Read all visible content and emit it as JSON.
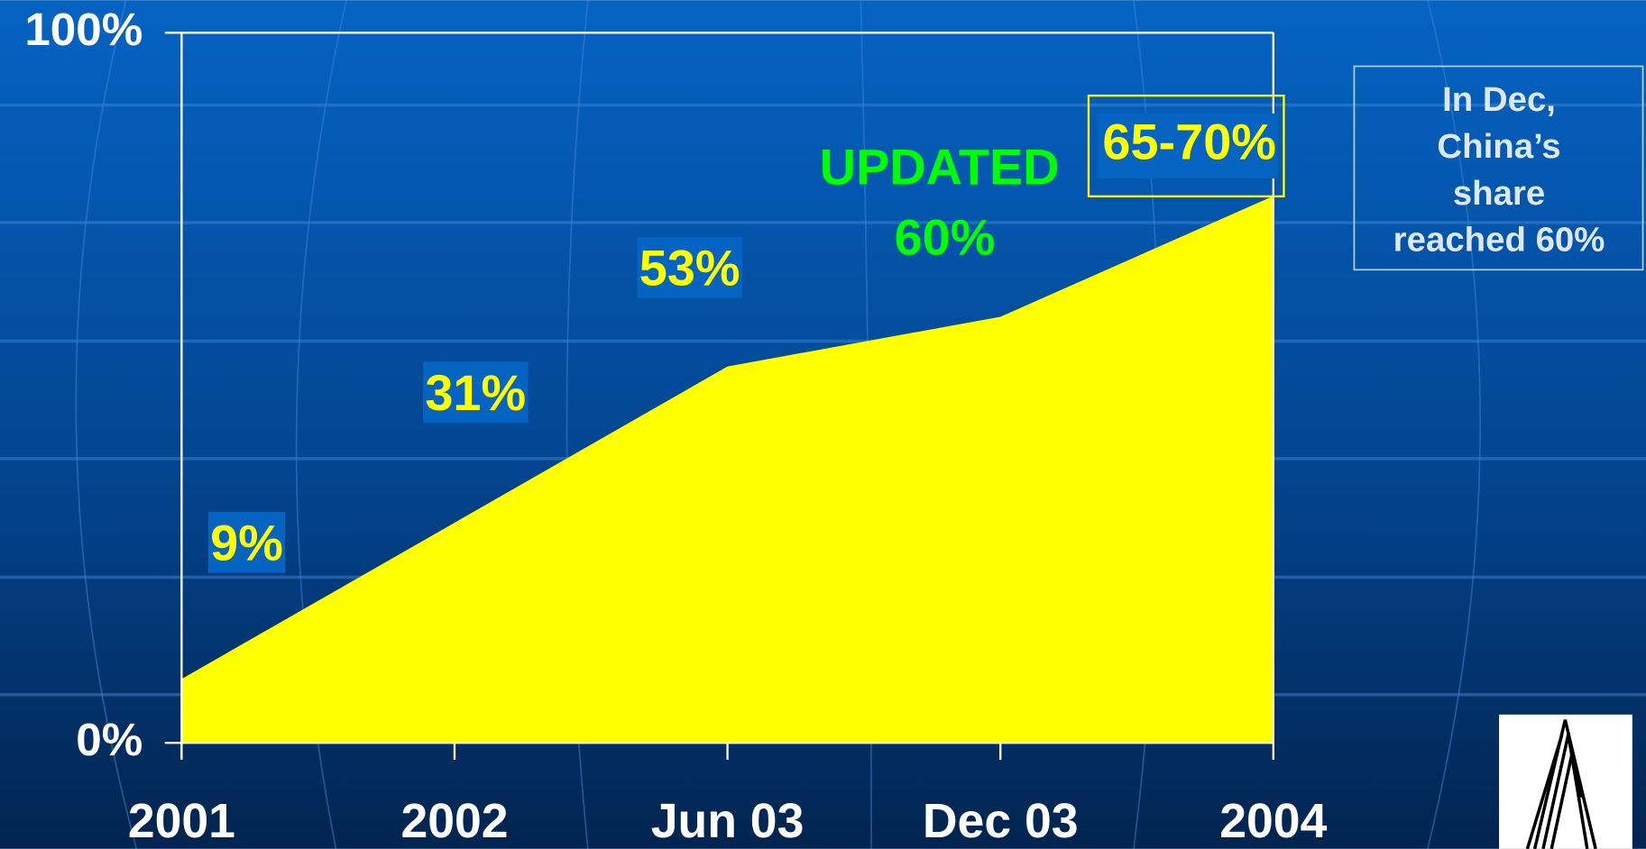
{
  "chart_data": {
    "type": "area",
    "categories": [
      "2001",
      "2002",
      "Jun 03",
      "Dec 03",
      "2004"
    ],
    "values": [
      9,
      31,
      53,
      60,
      77
    ],
    "value_labels": [
      "9%",
      "31%",
      "53%",
      "60%",
      null
    ],
    "color": "#ffff00",
    "ylim": [
      0,
      100
    ],
    "yticks": [
      {
        "value": 0,
        "label": "0%"
      },
      {
        "value": 100,
        "label": "100%"
      }
    ],
    "annotations": [
      "UPDATED",
      "65-70%"
    ],
    "note": [
      "In Dec,",
      "China’s",
      "share",
      "reached 60%"
    ]
  }
}
